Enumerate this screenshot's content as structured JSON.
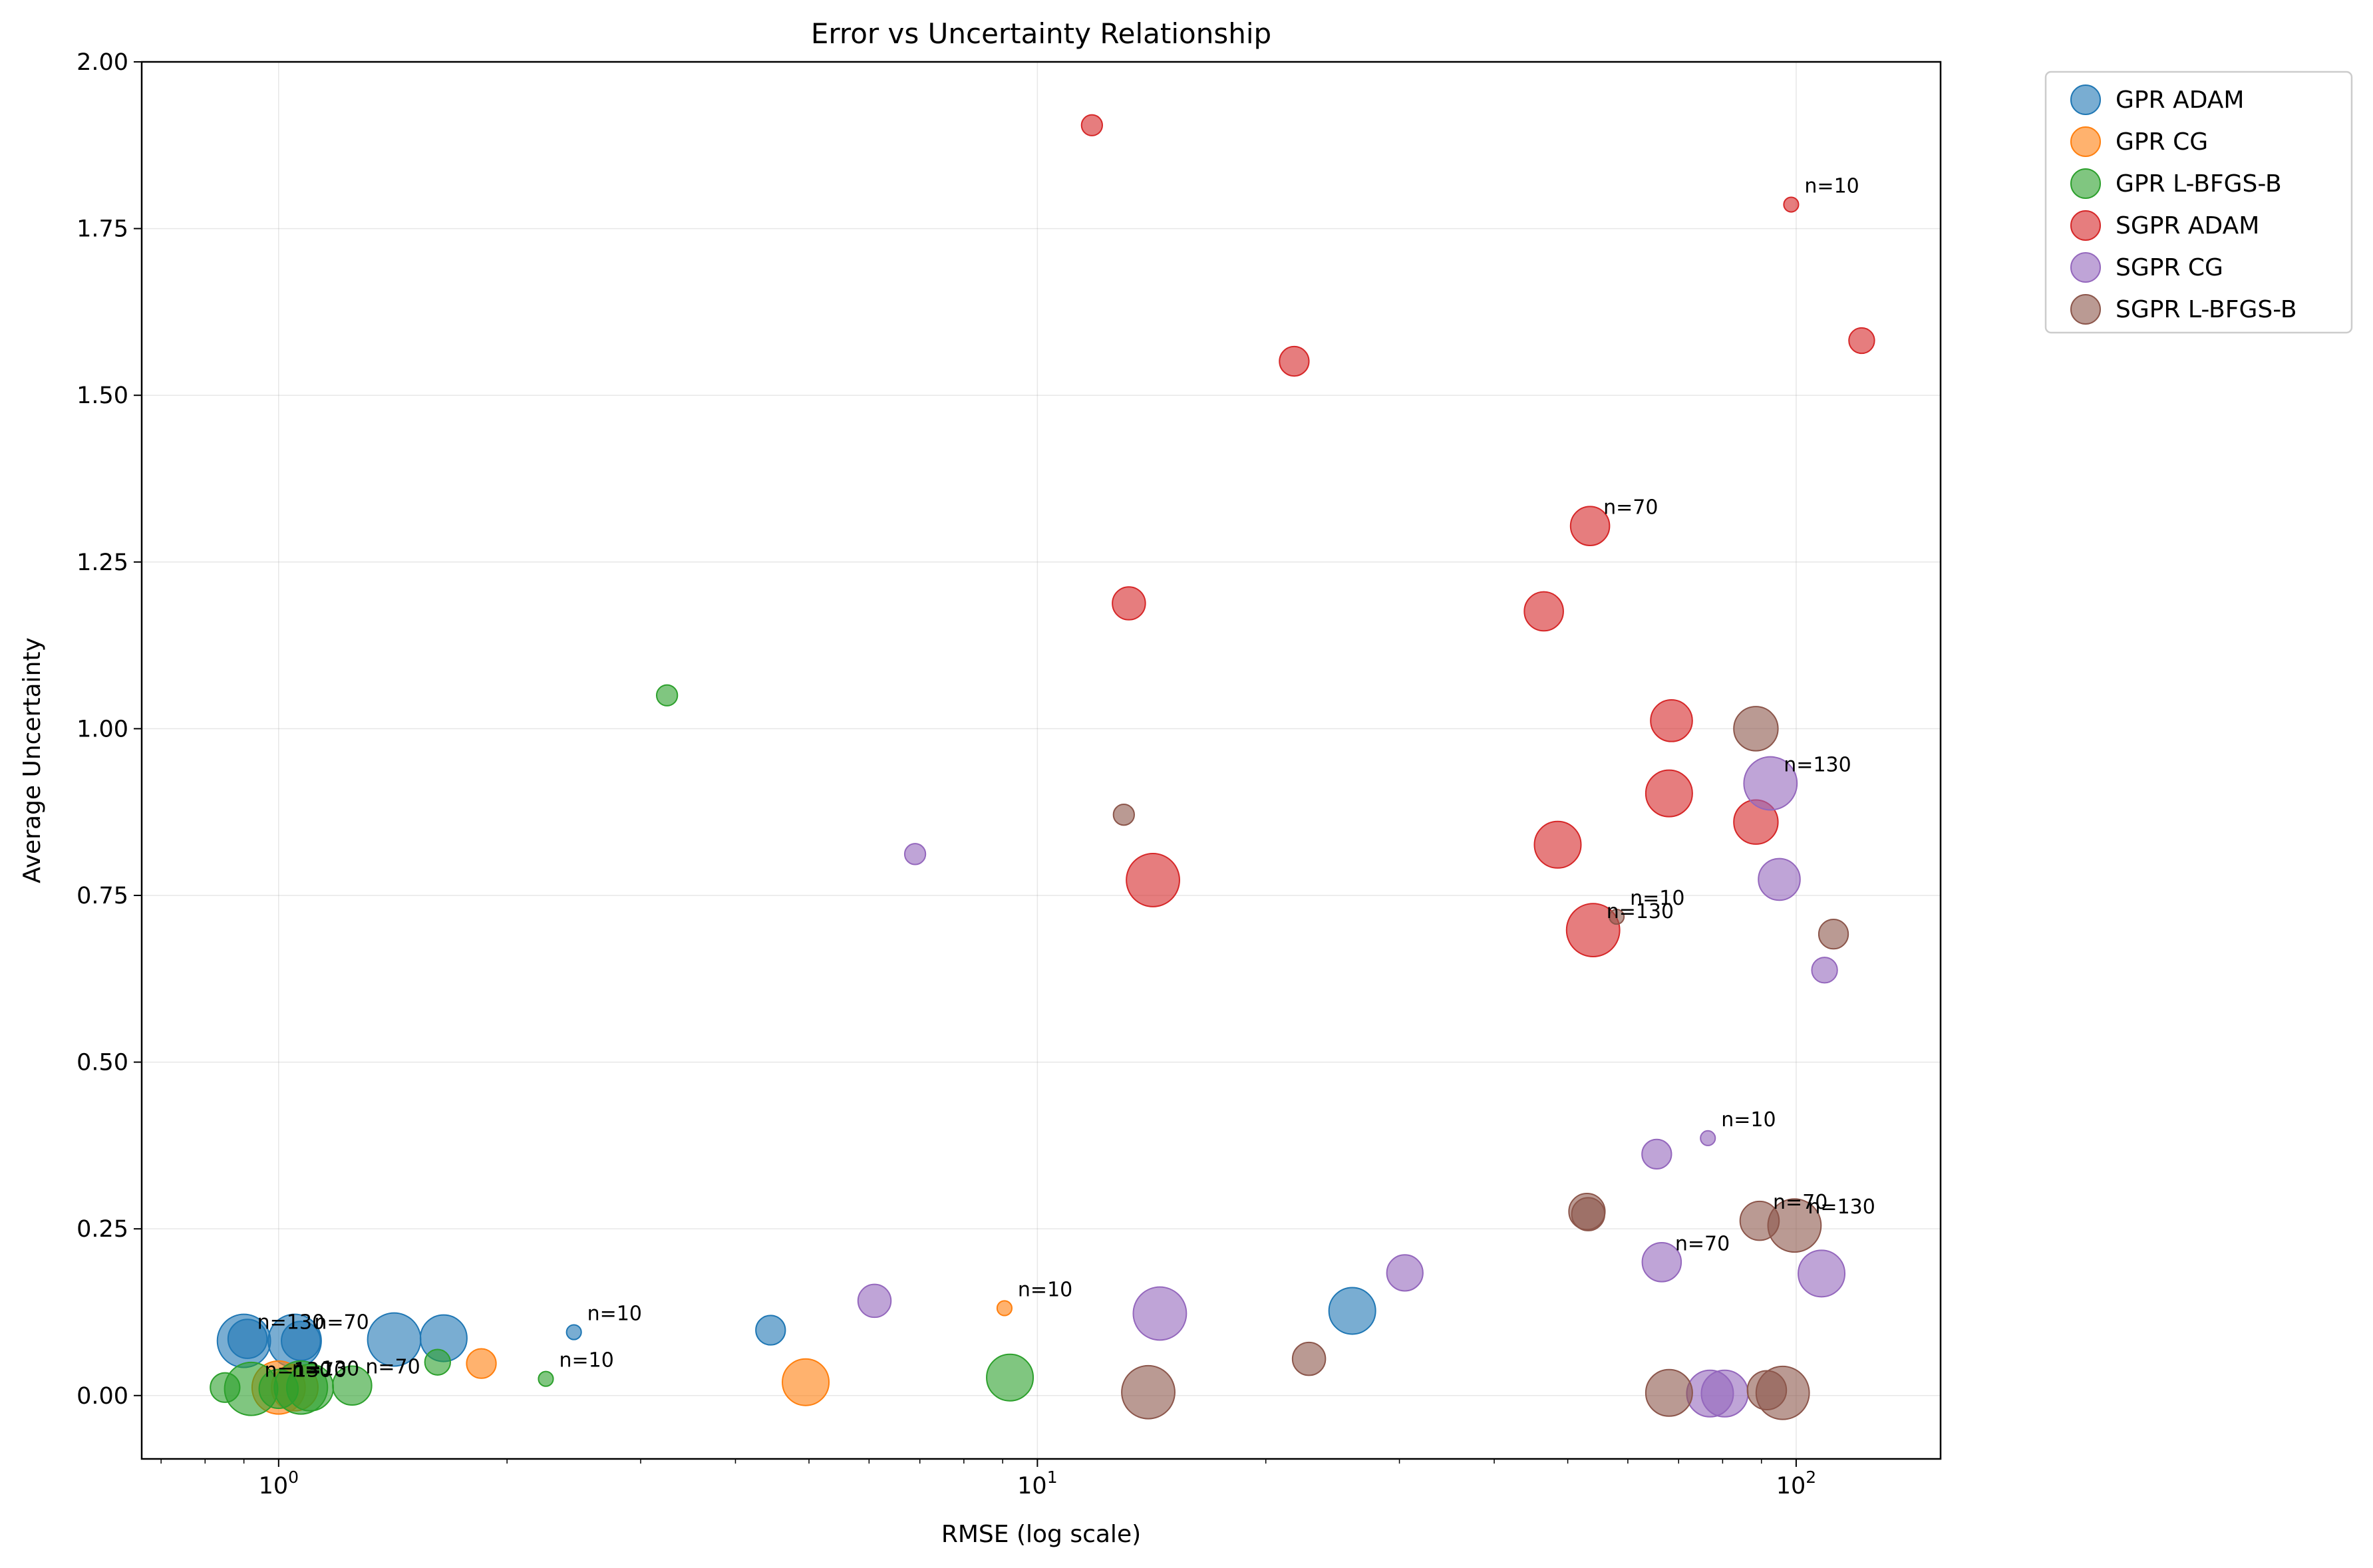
{
  "chart_data": {
    "type": "scatter",
    "title": "Error vs Uncertainty Relationship",
    "xlabel": "RMSE (log scale)",
    "ylabel": "Average Uncertainty",
    "x_scale": "log",
    "xlim": [
      0.66,
      155
    ],
    "ylim": [
      -0.095,
      2.0
    ],
    "x_ticks": [
      {
        "value": 1,
        "base": "10",
        "exp": "0"
      },
      {
        "value": 10,
        "base": "10",
        "exp": "1"
      },
      {
        "value": 100,
        "base": "10",
        "exp": "2"
      }
    ],
    "y_ticks": [
      "0.00",
      "0.25",
      "0.50",
      "0.75",
      "1.00",
      "1.25",
      "1.50",
      "1.75",
      "2.00"
    ],
    "grid": true,
    "legend_position": "outside upper right",
    "size_encodes": "n",
    "series": [
      {
        "name": "GPR ADAM",
        "color": "#1f77b4",
        "points": [
          {
            "x": 0.9,
            "y": 0.082,
            "n": 130
          },
          {
            "x": 0.91,
            "y": 0.085,
            "n": 70
          },
          {
            "x": 1.05,
            "y": 0.082,
            "n": 130
          },
          {
            "x": 1.07,
            "y": 0.082,
            "n": 70
          },
          {
            "x": 1.42,
            "y": 0.084,
            "n": 130
          },
          {
            "x": 1.65,
            "y": 0.086,
            "n": 100
          },
          {
            "x": 2.45,
            "y": 0.095,
            "n": 10
          },
          {
            "x": 4.45,
            "y": 0.098,
            "n": 40
          },
          {
            "x": 26.0,
            "y": 0.127,
            "n": 100
          }
        ]
      },
      {
        "name": "GPR CG",
        "color": "#ff7f0e",
        "points": [
          {
            "x": 1.0,
            "y": 0.012,
            "n": 130
          },
          {
            "x": 1.05,
            "y": 0.012,
            "n": 100
          },
          {
            "x": 1.85,
            "y": 0.048,
            "n": 40
          },
          {
            "x": 4.95,
            "y": 0.02,
            "n": 100
          },
          {
            "x": 9.05,
            "y": 0.131,
            "n": 10
          }
        ]
      },
      {
        "name": "GPR L-BFGS-B",
        "color": "#2ca02c",
        "points": [
          {
            "x": 0.85,
            "y": 0.012,
            "n": 40
          },
          {
            "x": 0.92,
            "y": 0.01,
            "n": 130
          },
          {
            "x": 1.0,
            "y": 0.01,
            "n": 70
          },
          {
            "x": 1.07,
            "y": 0.012,
            "n": 130
          },
          {
            "x": 1.1,
            "y": 0.012,
            "n": 100
          },
          {
            "x": 1.25,
            "y": 0.015,
            "n": 70
          },
          {
            "x": 1.62,
            "y": 0.05,
            "n": 30
          },
          {
            "x": 2.25,
            "y": 0.025,
            "n": 10
          },
          {
            "x": 3.25,
            "y": 1.05,
            "n": 20
          },
          {
            "x": 9.2,
            "y": 0.027,
            "n": 100
          }
        ]
      },
      {
        "name": "SGPR ADAM",
        "color": "#d62728",
        "points": [
          {
            "x": 11.8,
            "y": 1.905,
            "n": 20
          },
          {
            "x": 13.2,
            "y": 1.188,
            "n": 50
          },
          {
            "x": 14.2,
            "y": 0.773,
            "n": 130
          },
          {
            "x": 21.8,
            "y": 1.551,
            "n": 40
          },
          {
            "x": 46.5,
            "y": 1.176,
            "n": 70
          },
          {
            "x": 48.5,
            "y": 0.826,
            "n": 100
          },
          {
            "x": 53.5,
            "y": 1.304,
            "n": 70
          },
          {
            "x": 54.0,
            "y": 0.698,
            "n": 130
          },
          {
            "x": 68.5,
            "y": 1.012,
            "n": 80
          },
          {
            "x": 68.0,
            "y": 0.903,
            "n": 100
          },
          {
            "x": 88.5,
            "y": 0.86,
            "n": 90
          },
          {
            "x": 98.5,
            "y": 1.786,
            "n": 10
          },
          {
            "x": 122.0,
            "y": 1.582,
            "n": 30
          }
        ]
      },
      {
        "name": "SGPR CG",
        "color": "#9467bd",
        "points": [
          {
            "x": 6.1,
            "y": 0.142,
            "n": 50
          },
          {
            "x": 6.9,
            "y": 0.812,
            "n": 20
          },
          {
            "x": 14.5,
            "y": 0.123,
            "n": 130
          },
          {
            "x": 30.5,
            "y": 0.184,
            "n": 60
          },
          {
            "x": 65.5,
            "y": 0.362,
            "n": 40
          },
          {
            "x": 66.5,
            "y": 0.2,
            "n": 70
          },
          {
            "x": 76.5,
            "y": 0.386,
            "n": 10
          },
          {
            "x": 77.0,
            "y": 0.003,
            "n": 100
          },
          {
            "x": 80.5,
            "y": 0.003,
            "n": 100
          },
          {
            "x": 92.5,
            "y": 0.918,
            "n": 130
          },
          {
            "x": 95.0,
            "y": 0.774,
            "n": 80
          },
          {
            "x": 108.0,
            "y": 0.183,
            "n": 100
          },
          {
            "x": 109.0,
            "y": 0.638,
            "n": 30
          }
        ]
      },
      {
        "name": "SGPR L-BFGS-B",
        "color": "#8c564b",
        "points": [
          {
            "x": 13.0,
            "y": 0.871,
            "n": 20
          },
          {
            "x": 14.0,
            "y": 0.005,
            "n": 130
          },
          {
            "x": 22.8,
            "y": 0.055,
            "n": 50
          },
          {
            "x": 53.0,
            "y": 0.276,
            "n": 60
          },
          {
            "x": 53.2,
            "y": 0.272,
            "n": 50
          },
          {
            "x": 58.0,
            "y": 0.718,
            "n": 10
          },
          {
            "x": 68.0,
            "y": 0.004,
            "n": 100
          },
          {
            "x": 88.5,
            "y": 1.0,
            "n": 90
          },
          {
            "x": 89.5,
            "y": 0.262,
            "n": 70
          },
          {
            "x": 91.5,
            "y": 0.008,
            "n": 70
          },
          {
            "x": 96.0,
            "y": 0.004,
            "n": 130
          },
          {
            "x": 99.5,
            "y": 0.255,
            "n": 130
          },
          {
            "x": 112.0,
            "y": 0.692,
            "n": 40
          }
        ]
      }
    ],
    "annotations": [
      {
        "text": "n=130",
        "x": 0.9,
        "y": 0.082
      },
      {
        "text": "n=70",
        "x": 1.07,
        "y": 0.082
      },
      {
        "text": "n=10",
        "x": 2.45,
        "y": 0.095
      },
      {
        "text": "n=10",
        "x": 2.25,
        "y": 0.025
      },
      {
        "text": "n=130",
        "x": 0.92,
        "y": 0.01
      },
      {
        "text": "n=130",
        "x": 1.0,
        "y": 0.012
      },
      {
        "text": "n=70",
        "x": 1.0,
        "y": 0.01
      },
      {
        "text": "n=10",
        "x": 9.05,
        "y": 0.131
      },
      {
        "text": "n=70",
        "x": 1.25,
        "y": 0.015
      },
      {
        "text": "n=70",
        "x": 53.5,
        "y": 1.304
      },
      {
        "text": "n=10",
        "x": 98.5,
        "y": 1.786
      },
      {
        "text": "n=130",
        "x": 92.5,
        "y": 0.918
      },
      {
        "text": "n=10",
        "x": 58.0,
        "y": 0.718
      },
      {
        "text": "n=130",
        "x": 54.0,
        "y": 0.698
      },
      {
        "text": "n=10",
        "x": 76.5,
        "y": 0.386
      },
      {
        "text": "n=70",
        "x": 89.5,
        "y": 0.262
      },
      {
        "text": "n=130",
        "x": 99.5,
        "y": 0.255
      },
      {
        "text": "n=70",
        "x": 66.5,
        "y": 0.2
      }
    ]
  }
}
